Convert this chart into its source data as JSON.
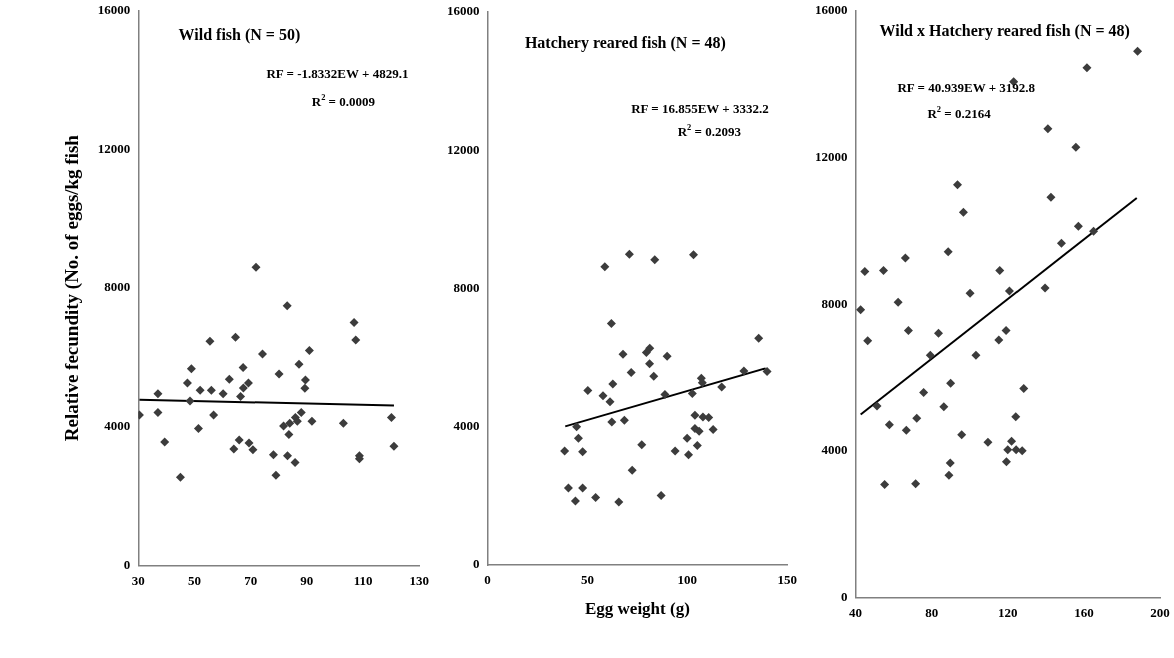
{
  "chart_data": [
    {
      "type": "scatter",
      "title": "Wild fish (N = 50)",
      "ylabel": "Relative fecundity (No. of eggs/kg fish",
      "xlim": [
        30,
        130
      ],
      "xticks": [
        30,
        50,
        70,
        90,
        110,
        130
      ],
      "ylim": [
        0,
        16000
      ],
      "yticks": [
        0,
        4000,
        8000,
        12000,
        16000
      ],
      "grid": false,
      "legend": false,
      "marker": "diamond",
      "annotations": [
        "RF = -1.8332EW + 4829.1",
        "R$^{2}$ = 0.0009"
      ],
      "series": [
        {
          "type": "scatter",
          "color": "#3c3c3c",
          "x": [
            30.4,
            37.0,
            37.0,
            39.4,
            45.0,
            47.5,
            48.4,
            48.9,
            51.4,
            52.0,
            55.5,
            56.0,
            56.8,
            60.2,
            62.4,
            64.0,
            64.6,
            65.9,
            66.4,
            67.3,
            67.4,
            69.2,
            69.4,
            70.8,
            71.9,
            74.2,
            78.1,
            79.0,
            80.1,
            81.7,
            83.0,
            83.1,
            83.6,
            83.9,
            85.8,
            85.9,
            86.6,
            87.2,
            88.0,
            89.3,
            89.5,
            90.9,
            91.8,
            103.0,
            106.8,
            107.4,
            108.7,
            108.7,
            120.1,
            121.0
          ],
          "values": [
            4340,
            4950,
            4410,
            3560,
            2540,
            5260,
            4740,
            5670,
            3950,
            5050,
            6470,
            5050,
            4340,
            4950,
            5370,
            3360,
            6580,
            3620,
            4870,
            5710,
            5120,
            5260,
            3530,
            3340,
            8600,
            6100,
            3190,
            2600,
            5520,
            4020,
            7490,
            3160,
            3780,
            4100,
            2970,
            4270,
            4160,
            5800,
            4410,
            5110,
            5350,
            6200,
            4160,
            4100,
            7010,
            6500,
            3160,
            3080,
            4270,
            3440
          ]
        },
        {
          "type": "line",
          "color": "#000000",
          "marker": "none",
          "x": [
            30.4,
            121.0
          ],
          "values": [
            4780,
            4610
          ]
        }
      ]
    },
    {
      "type": "scatter",
      "title": "Hatchery reared fish (N = 48)",
      "xlabel": "Egg weight (g)",
      "xlim": [
        0,
        150
      ],
      "xticks": [
        0,
        50,
        100,
        150
      ],
      "ylim": [
        0,
        16000
      ],
      "yticks": [
        0,
        4000,
        8000,
        12000,
        16000
      ],
      "grid": false,
      "legend": false,
      "marker": "diamond",
      "annotations": [
        "RF = 16.855EW + 3332.2",
        "R$^{2}$ = 0.2093"
      ],
      "series": [
        {
          "type": "scatter",
          "color": "#3c3c3c",
          "x": [
            38.6,
            40.5,
            44.0,
            44.6,
            45.5,
            47.6,
            47.6,
            50.2,
            54.1,
            57.8,
            58.7,
            61.3,
            62.0,
            62.2,
            62.7,
            65.7,
            67.8,
            68.5,
            71.0,
            71.9,
            72.4,
            77.2,
            79.5,
            81.1,
            81.2,
            83.2,
            83.7,
            86.9,
            88.8,
            89.9,
            93.9,
            99.9,
            100.6,
            102.5,
            103.1,
            103.8,
            103.8,
            105.0,
            105.9,
            107.0,
            107.5,
            107.8,
            110.7,
            112.9,
            117.2,
            128.3,
            135.7,
            139.9
          ],
          "values": [
            3300,
            2230,
            1850,
            4000,
            3670,
            3280,
            2230,
            5050,
            1950,
            4900,
            8630,
            4720,
            6990,
            4140,
            5240,
            1820,
            6100,
            4190,
            8990,
            5570,
            2740,
            3480,
            6150,
            5820,
            6270,
            5460,
            8830,
            2010,
            4930,
            6040,
            3300,
            3670,
            3190,
            4960,
            8980,
            4330,
            3950,
            3460,
            3870,
            5400,
            5270,
            4280,
            4270,
            3920,
            5150,
            5610,
            6560,
            5600
          ]
        },
        {
          "type": "line",
          "color": "#000000",
          "marker": "none",
          "x": [
            38.9,
            139.2
          ],
          "values": [
            4010,
            5690
          ]
        }
      ]
    },
    {
      "type": "scatter",
      "title": "Wild x Hatchery reared fish (N = 48)",
      "xlim": [
        40,
        200
      ],
      "xticks": [
        40,
        80,
        120,
        160,
        200
      ],
      "ylim": [
        0,
        16000
      ],
      "yticks": [
        0,
        4000,
        8000,
        12000,
        16000
      ],
      "grid": false,
      "legend": false,
      "marker": "diamond",
      "annotations": [
        "RF = 40.939EW + 3192.8",
        "R$^{2}$ = 0.2164"
      ],
      "series": [
        {
          "type": "scatter",
          "color": "#3c3c3c",
          "x": [
            42.7,
            44.9,
            46.4,
            51.3,
            54.7,
            55.3,
            57.8,
            62.4,
            66.2,
            66.7,
            67.8,
            71.6,
            72.2,
            75.8,
            79.3,
            83.6,
            86.4,
            88.7,
            89.1,
            89.8,
            90.0,
            93.6,
            95.8,
            96.7,
            100.2,
            103.3,
            109.6,
            115.3,
            115.8,
            119.1,
            119.3,
            120.0,
            120.9,
            122.0,
            123.1,
            124.2,
            124.4,
            127.6,
            128.4,
            139.6,
            141.1,
            142.7,
            148.2,
            155.8,
            157.1,
            161.6,
            165.1,
            188.2
          ],
          "values": [
            7850,
            8890,
            7000,
            5220,
            8920,
            3080,
            4710,
            8050,
            9260,
            4560,
            7280,
            3100,
            4890,
            5590,
            6610,
            7210,
            5200,
            9430,
            3330,
            3670,
            5840,
            11260,
            4440,
            10510,
            8300,
            6610,
            4230,
            7020,
            8920,
            7280,
            3700,
            4030,
            8360,
            4260,
            14070,
            4930,
            4030,
            4000,
            5700,
            8440,
            12790,
            10920,
            9660,
            12280,
            10130,
            14450,
            9990,
            14900
          ]
        },
        {
          "type": "line",
          "color": "#000000",
          "marker": "none",
          "x": [
            42.7,
            187.8
          ],
          "values": [
            4990,
            10900
          ]
        }
      ]
    }
  ]
}
